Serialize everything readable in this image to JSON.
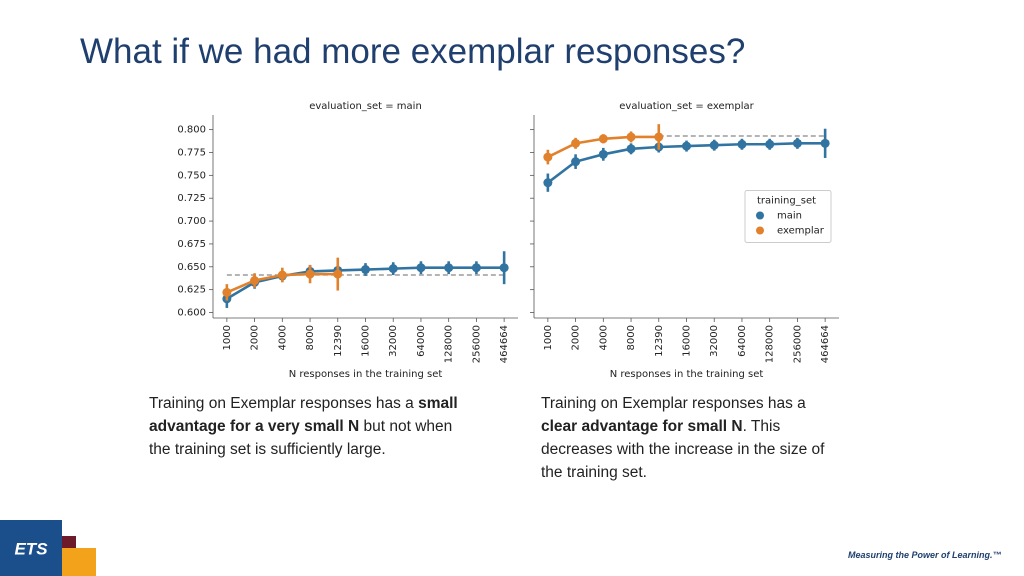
{
  "title": "What if we had more exemplar responses?",
  "captions": [
    [
      "Training on Exemplar responses has a ",
      "small advantage for a very small N",
      " but not when the training set is sufficiently large."
    ],
    [
      "Training on Exemplar responses has a ",
      "clear advantage for small N",
      ". This decreases with the increase in the size of the training set."
    ]
  ],
  "logo": "ETS",
  "tagline": "Measuring the Power of Learning.™",
  "chart_data": [
    {
      "type": "line",
      "title": "evaluation_set = main",
      "xlabel": "N responses in the training set",
      "categories": [
        "1000",
        "2000",
        "4000",
        "8000",
        "12390",
        "16000",
        "32000",
        "64000",
        "128000",
        "256000",
        "464664"
      ],
      "series": [
        {
          "name": "main",
          "color": "#3274a1",
          "values": [
            0.615,
            0.633,
            0.64,
            0.645,
            0.646,
            0.647,
            0.648,
            0.649,
            0.649,
            0.649,
            0.649
          ],
          "errors": [
            0.01,
            0.007,
            0.006,
            0.007,
            0.006,
            0.007,
            0.007,
            0.007,
            0.007,
            0.007,
            0.018
          ]
        },
        {
          "name": "exemplar",
          "color": "#e1812c",
          "values": [
            0.622,
            0.635,
            0.641,
            0.642,
            0.642,
            null,
            null,
            null,
            null,
            null,
            null
          ],
          "errors": [
            0.009,
            0.008,
            0.008,
            0.01,
            0.018,
            null,
            null,
            null,
            null,
            null,
            null
          ]
        }
      ],
      "reference_line": 0.641,
      "reference_from": "1000",
      "ylim": [
        0.594,
        0.816
      ],
      "yticks": [
        {
          "value": 0.6,
          "label": "0.600"
        },
        {
          "value": 0.625,
          "label": "0.625"
        },
        {
          "value": 0.65,
          "label": "0.650"
        },
        {
          "value": 0.675,
          "label": "0.675"
        },
        {
          "value": 0.7,
          "label": "0.700"
        },
        {
          "value": 0.725,
          "label": "0.725"
        },
        {
          "value": 0.75,
          "label": "0.750"
        },
        {
          "value": 0.775,
          "label": "0.775"
        },
        {
          "value": 0.8,
          "label": "0.800"
        }
      ],
      "ytick_labels": true,
      "legend": false
    },
    {
      "type": "line",
      "title": "evaluation_set = exemplar",
      "xlabel": "N responses in the training set",
      "categories": [
        "1000",
        "2000",
        "4000",
        "8000",
        "12390",
        "16000",
        "32000",
        "64000",
        "128000",
        "256000",
        "464664"
      ],
      "series": [
        {
          "name": "main",
          "color": "#3274a1",
          "values": [
            0.742,
            0.765,
            0.773,
            0.779,
            0.781,
            0.782,
            0.783,
            0.784,
            0.784,
            0.785,
            0.785
          ],
          "errors": [
            0.01,
            0.008,
            0.007,
            0.006,
            0.006,
            0.006,
            0.006,
            0.006,
            0.006,
            0.006,
            0.016
          ]
        },
        {
          "name": "exemplar",
          "color": "#e1812c",
          "values": [
            0.77,
            0.785,
            0.79,
            0.792,
            0.792,
            null,
            null,
            null,
            null,
            null,
            null
          ],
          "errors": [
            0.008,
            0.006,
            0.005,
            0.006,
            0.014,
            null,
            null,
            null,
            null,
            null,
            null
          ]
        }
      ],
      "reference_line": 0.793,
      "reference_from": "12390",
      "ylim": [
        0.594,
        0.816
      ],
      "yticks": [
        0.6,
        0.625,
        0.65,
        0.675,
        0.7,
        0.725,
        0.75,
        0.775,
        0.8
      ],
      "ytick_labels": false,
      "legend": true,
      "legend_title": "training_set",
      "legend_position": "center right"
    }
  ]
}
